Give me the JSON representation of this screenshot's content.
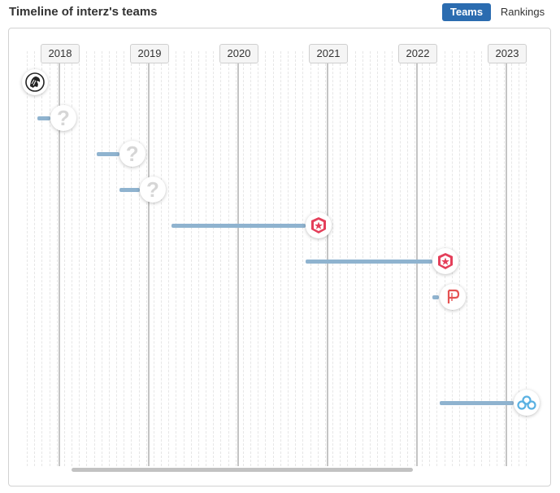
{
  "header": {
    "title": "Timeline of interz's teams",
    "tabs": [
      {
        "label": "Teams",
        "active": true
      },
      {
        "label": "Rankings",
        "active": false
      }
    ]
  },
  "timeline": {
    "years": [
      "2018",
      "2019",
      "2020",
      "2021",
      "2022",
      "2023"
    ],
    "stints": [
      {
        "logo": "lion-emblem-icon",
        "start": null,
        "end": null
      },
      {
        "logo": "unknown-team-icon",
        "start": 2017.75,
        "end": 2017.9
      },
      {
        "logo": "unknown-team-icon",
        "start": 2018.42,
        "end": 2018.67
      },
      {
        "logo": "unknown-team-icon",
        "start": 2018.67,
        "end": 2018.9
      },
      {
        "logo": "gambit-icon",
        "start": 2019.25,
        "end": 2020.75
      },
      {
        "logo": "gambit-icon",
        "start": 2020.75,
        "end": 2022.17
      },
      {
        "logo": "team-p-icon",
        "start": 2022.17,
        "end": 2022.25
      },
      {
        "logo": "cloud9-icon",
        "start": 2022.25,
        "end": 2023.08
      }
    ]
  },
  "colors": {
    "accent": "#2b6cb0",
    "bar": "#8fb3cf",
    "gambit": "#e43f5a",
    "cloud9": "#5ab1e2",
    "team_p": "#e55353"
  }
}
